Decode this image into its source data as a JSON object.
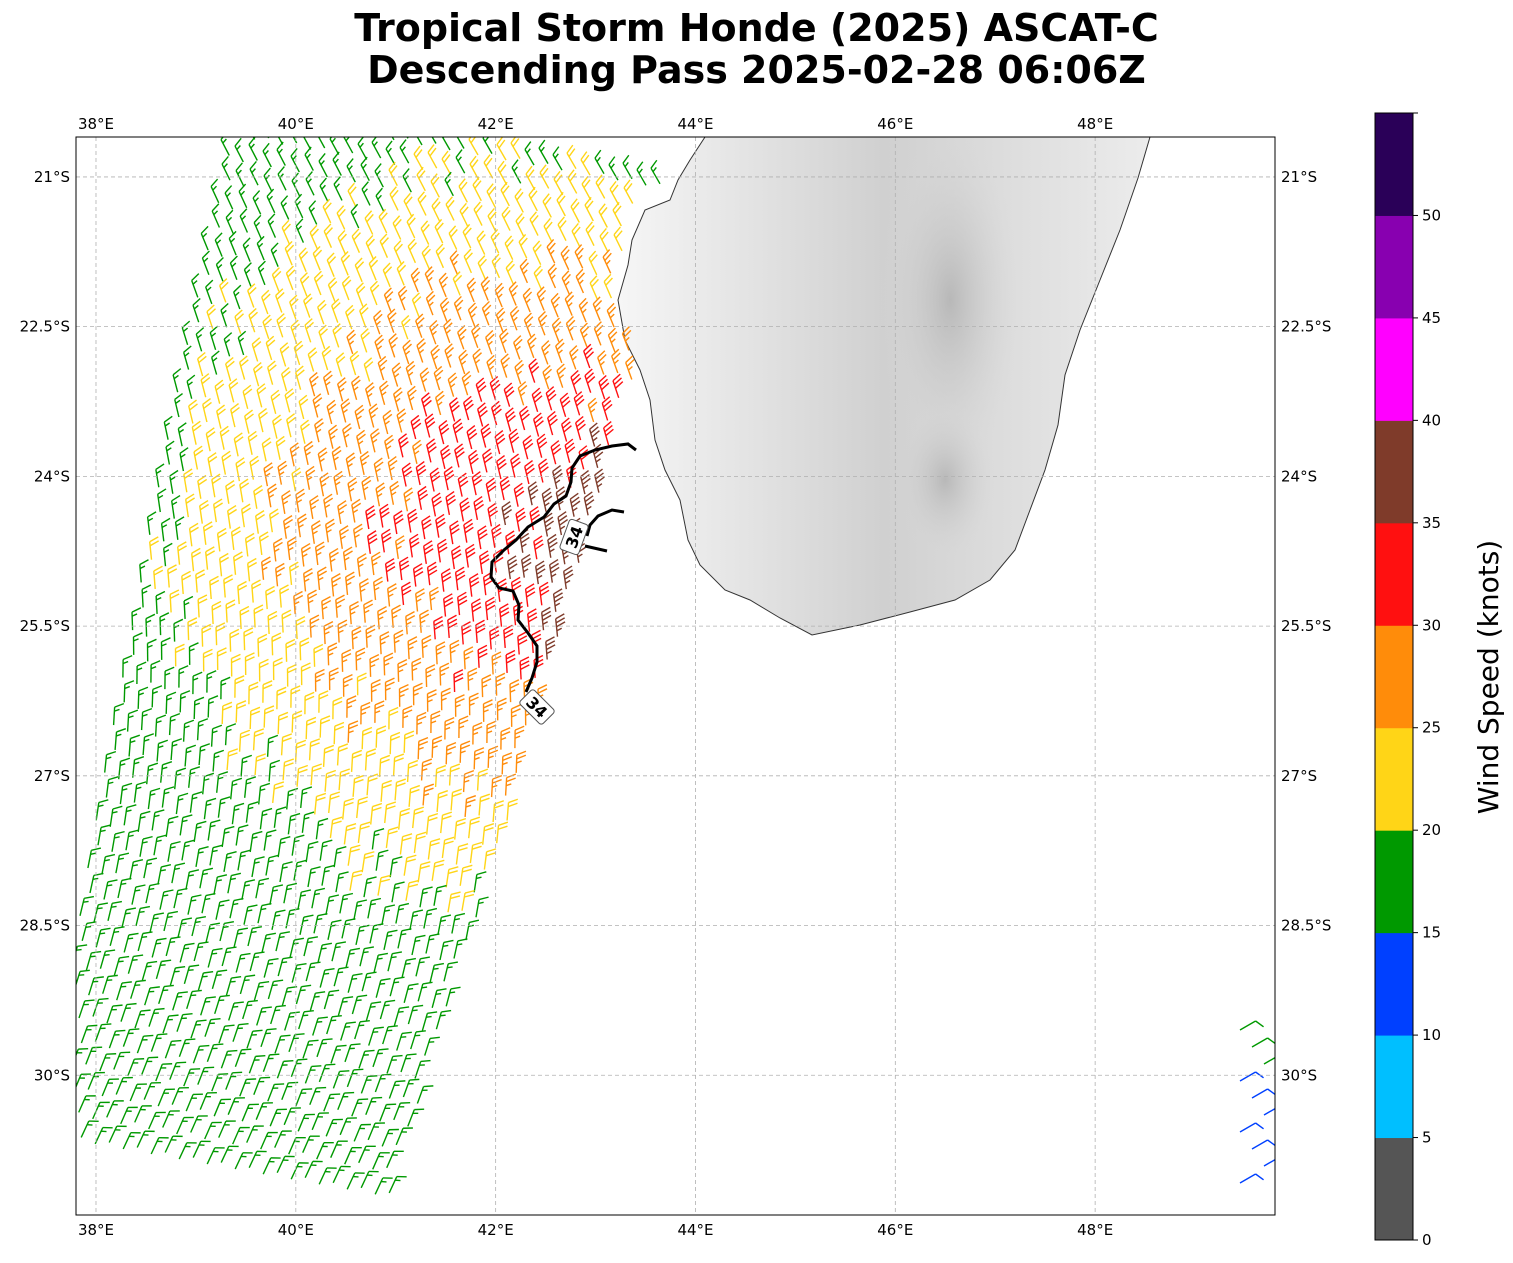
{
  "title": {
    "line1": "Tropical Storm Honde (2025) ASCAT-C",
    "line2": "Descending Pass 2025-02-28 06:06Z"
  },
  "map": {
    "lon_range": [
      37.8,
      49.8
    ],
    "lat_range": [
      -20.6,
      -31.4
    ],
    "lon_ticks": [
      {
        "value": 38,
        "label": "38°E"
      },
      {
        "value": 40,
        "label": "40°E"
      },
      {
        "value": 42,
        "label": "42°E"
      },
      {
        "value": 44,
        "label": "44°E"
      },
      {
        "value": 46,
        "label": "46°E"
      },
      {
        "value": 48,
        "label": "48°E"
      }
    ],
    "lat_ticks": [
      {
        "value": -21,
        "label": "21°S"
      },
      {
        "value": -22.5,
        "label": "22.5°S"
      },
      {
        "value": -24,
        "label": "24°S"
      },
      {
        "value": -25.5,
        "label": "25.5°S"
      },
      {
        "value": -27,
        "label": "27°S"
      },
      {
        "value": -28.5,
        "label": "28.5°S"
      },
      {
        "value": -30,
        "label": "30°S"
      }
    ],
    "contour_label": "34",
    "landmass": "Madagascar (southern part)",
    "grid": true
  },
  "colorbar": {
    "label": "Wind Speed (knots)",
    "ticks": [
      "0",
      "5",
      "10",
      "15",
      "20",
      "25",
      "30",
      "35",
      "40",
      "45",
      "50"
    ],
    "bins": [
      {
        "min": 0,
        "max": 5,
        "color": "#555555"
      },
      {
        "min": 5,
        "max": 10,
        "color": "#00bfff"
      },
      {
        "min": 10,
        "max": 15,
        "color": "#0040ff"
      },
      {
        "min": 15,
        "max": 20,
        "color": "#009900"
      },
      {
        "min": 20,
        "max": 25,
        "color": "#ffd517"
      },
      {
        "min": 25,
        "max": 30,
        "color": "#ff8c0a"
      },
      {
        "min": 30,
        "max": 35,
        "color": "#ff1010"
      },
      {
        "min": 35,
        "max": 40,
        "color": "#7f3b2a"
      },
      {
        "min": 40,
        "max": 45,
        "color": "#ff00ff"
      },
      {
        "min": 45,
        "max": 50,
        "color": "#8800b0"
      },
      {
        "min": 50,
        "max": 55,
        "color": "#2a0058"
      }
    ]
  }
}
